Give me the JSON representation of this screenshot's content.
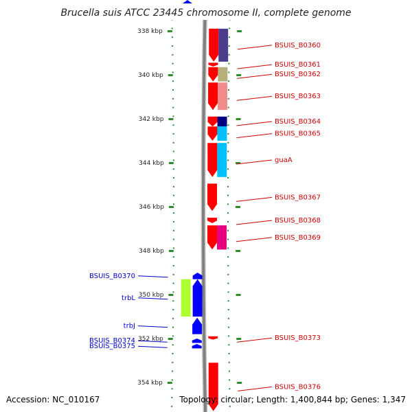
{
  "title": "Brucella suis ATCC 23445 chromosome II, complete genome",
  "footer": {
    "accession": "Accession: NC_010167",
    "topology": "Topology: circular; Length: 1,400,844 bp; Genes: 1,347"
  },
  "colors": {
    "forward_label": "#cc0000",
    "reverse_label": "#0000cc",
    "tick": "#2e8b2e",
    "backbone": "#808080",
    "backbone_edge": "#c8c8c8"
  },
  "chart_data": {
    "type": "genome_map",
    "axis_unit": "kbp",
    "axis_ticks": [
      {
        "kbp": 338,
        "label": "338 kbp"
      },
      {
        "kbp": 340,
        "label": "340 kbp"
      },
      {
        "kbp": 342,
        "label": "342 kbp"
      },
      {
        "kbp": 344,
        "label": "344 kbp"
      },
      {
        "kbp": 346,
        "label": "346 kbp"
      },
      {
        "kbp": 348,
        "label": "348 kbp"
      },
      {
        "kbp": 350,
        "label": "350 kbp"
      },
      {
        "kbp": 352,
        "label": "352 kbp"
      },
      {
        "kbp": 354,
        "label": "354 kbp"
      }
    ],
    "genes": [
      {
        "name": "BSUIS_B0360",
        "strand": "+",
        "start_kbp": 337.9,
        "end_kbp": 339.4,
        "color": "#4b3c8c",
        "labeled": true
      },
      {
        "name": "BSUIS_B0361",
        "strand": "+",
        "start_kbp": 339.45,
        "end_kbp": 339.62,
        "color": "#ff0000",
        "labeled": true
      },
      {
        "name": "BSUIS_B0362",
        "strand": "+",
        "start_kbp": 339.65,
        "end_kbp": 340.3,
        "color": "#b5b07a",
        "labeled": true
      },
      {
        "name": "BSUIS_B0363",
        "strand": "+",
        "start_kbp": 340.35,
        "end_kbp": 341.6,
        "color": "#f08c8c",
        "labeled": true
      },
      {
        "name": "BSUIS_B0364",
        "strand": "+",
        "start_kbp": 341.9,
        "end_kbp": 342.35,
        "color": "#000080",
        "labeled": true
      },
      {
        "name": "BSUIS_B0365",
        "strand": "+",
        "start_kbp": 342.35,
        "end_kbp": 343.0,
        "color": "#00bfff",
        "labeled": true
      },
      {
        "name": "guaA",
        "strand": "+",
        "start_kbp": 343.1,
        "end_kbp": 344.65,
        "color": "#00bfff",
        "labeled": true
      },
      {
        "name": "BSUIS_B0367",
        "strand": "+",
        "start_kbp": 344.95,
        "end_kbp": 346.2,
        "color": "#ff0000",
        "labeled": true
      },
      {
        "name": "BSUIS_B0368",
        "strand": "+",
        "start_kbp": 346.5,
        "end_kbp": 346.75,
        "color": "#ff0000",
        "labeled": true
      },
      {
        "name": "BSUIS_B0369",
        "strand": "+",
        "start_kbp": 346.85,
        "end_kbp": 347.95,
        "color": "#e6007e",
        "labeled": true
      },
      {
        "name": "BSUIS_B0370",
        "strand": "-",
        "start_kbp": 349.0,
        "end_kbp": 349.3,
        "color": "#0000ff",
        "labeled": true
      },
      {
        "name": "trbL",
        "strand": "-",
        "start_kbp": 349.3,
        "end_kbp": 351.0,
        "color": "#adff2f",
        "labeled": true
      },
      {
        "name": "trbJ",
        "strand": "-",
        "start_kbp": 351.05,
        "end_kbp": 351.8,
        "color": "#0000ff",
        "labeled": true
      },
      {
        "name": "BSUIS_B0373",
        "strand": "+",
        "start_kbp": 351.9,
        "end_kbp": 352.05,
        "color": "#ff0000",
        "labeled": true
      },
      {
        "name": "BSUIS_B0374",
        "strand": "-",
        "start_kbp": 352.0,
        "end_kbp": 352.2,
        "color": "#0000ff",
        "labeled": true
      },
      {
        "name": "BSUIS_B0375",
        "strand": "-",
        "start_kbp": 352.25,
        "end_kbp": 352.45,
        "color": "#0000ff",
        "labeled": true
      },
      {
        "name": "BSUIS_B0376",
        "strand": "+",
        "start_kbp": 353.1,
        "end_kbp": 355.3,
        "color": "#ff0000",
        "labeled": true
      }
    ]
  }
}
